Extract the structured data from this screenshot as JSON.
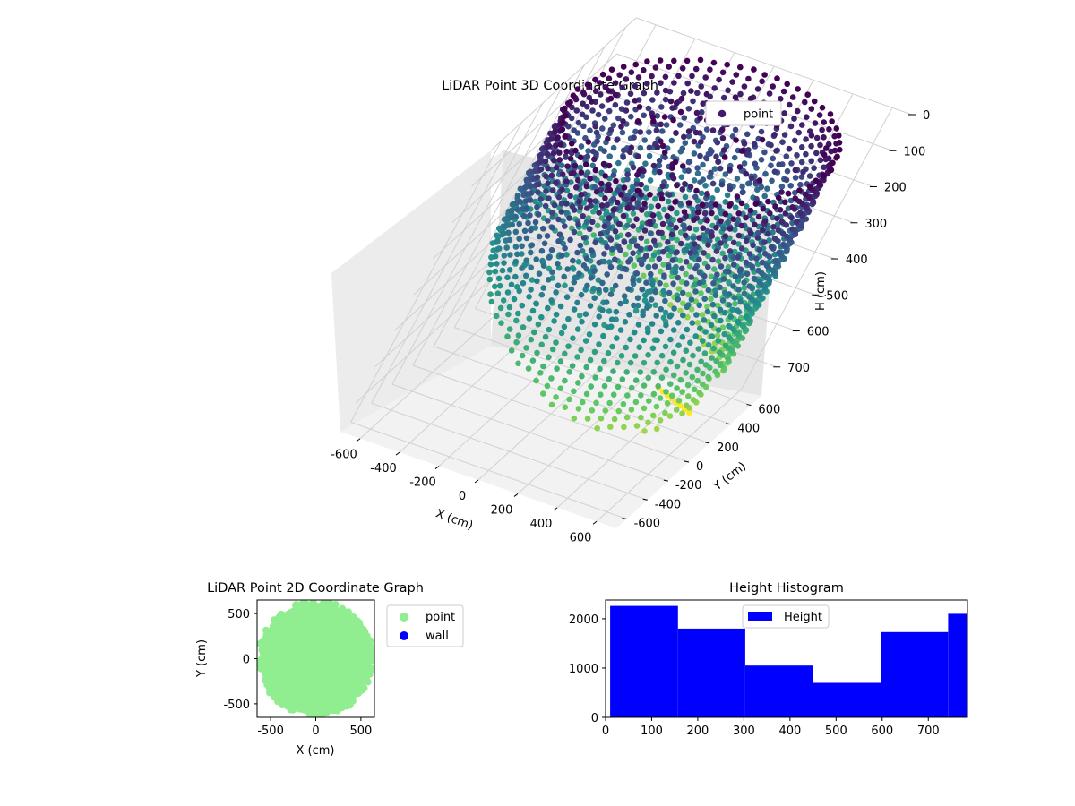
{
  "chart_data": [
    {
      "type": "scatter3d",
      "title": "LiDAR Point 3D Coordinate Graph",
      "xlabel": "X (cm)",
      "ylabel": "Y (cm)",
      "zlabel": "H (cm)",
      "xlim": [
        -700,
        700
      ],
      "ylim": [
        -700,
        700
      ],
      "zlim": [
        0,
        780
      ],
      "z_inverted": true,
      "x_ticks": [
        -600,
        -400,
        -200,
        0,
        200,
        400,
        600
      ],
      "y_ticks": [
        -600,
        -400,
        -200,
        0,
        200,
        400,
        600
      ],
      "z_ticks": [
        0,
        100,
        200,
        300,
        400,
        500,
        600,
        700
      ],
      "legend": {
        "position": "top-right",
        "entries": [
          "point"
        ]
      },
      "colormap": "viridis",
      "series": [
        {
          "name": "point",
          "color": "#46186e",
          "description_values": {
            "ring_radius_cm": 620,
            "height_range_cm": [
              0,
              780
            ]
          }
        }
      ],
      "grid": true
    },
    {
      "type": "scatter",
      "title": "LiDAR Point 2D Coordinate Graph",
      "xlabel": "X (cm)",
      "ylabel": "Y (cm)",
      "xlim": [
        -650,
        650
      ],
      "ylim": [
        -650,
        650
      ],
      "x_ticks": [
        -500,
        0,
        500
      ],
      "y_ticks": [
        -500,
        0,
        500
      ],
      "legend": {
        "position": "outside-right",
        "entries": [
          "point",
          "wall"
        ]
      },
      "series": [
        {
          "name": "point",
          "color": "#90ee90"
        },
        {
          "name": "wall",
          "color": "#0000ff"
        }
      ]
    },
    {
      "type": "bar",
      "title": "Height Histogram",
      "xlabel": "",
      "ylabel": "",
      "xlim": [
        0,
        785
      ],
      "ylim": [
        0,
        2380
      ],
      "x_ticks": [
        0,
        100,
        200,
        300,
        400,
        500,
        600,
        700
      ],
      "y_ticks": [
        0,
        1000,
        2000
      ],
      "legend": {
        "position": "top-center",
        "entries": [
          "Height"
        ]
      },
      "series": [
        {
          "name": "Height",
          "color": "#0000ff",
          "bins": [
            {
              "x0": 10,
              "x1": 157,
              "count": 2260
            },
            {
              "x0": 157,
              "x1": 303,
              "count": 1800
            },
            {
              "x0": 303,
              "x1": 450,
              "count": 1050
            },
            {
              "x0": 450,
              "x1": 597,
              "count": 700
            },
            {
              "x0": 597,
              "x1": 743,
              "count": 1730
            },
            {
              "x0": 743,
              "x1": 785,
              "count": 2100
            }
          ]
        }
      ]
    }
  ]
}
